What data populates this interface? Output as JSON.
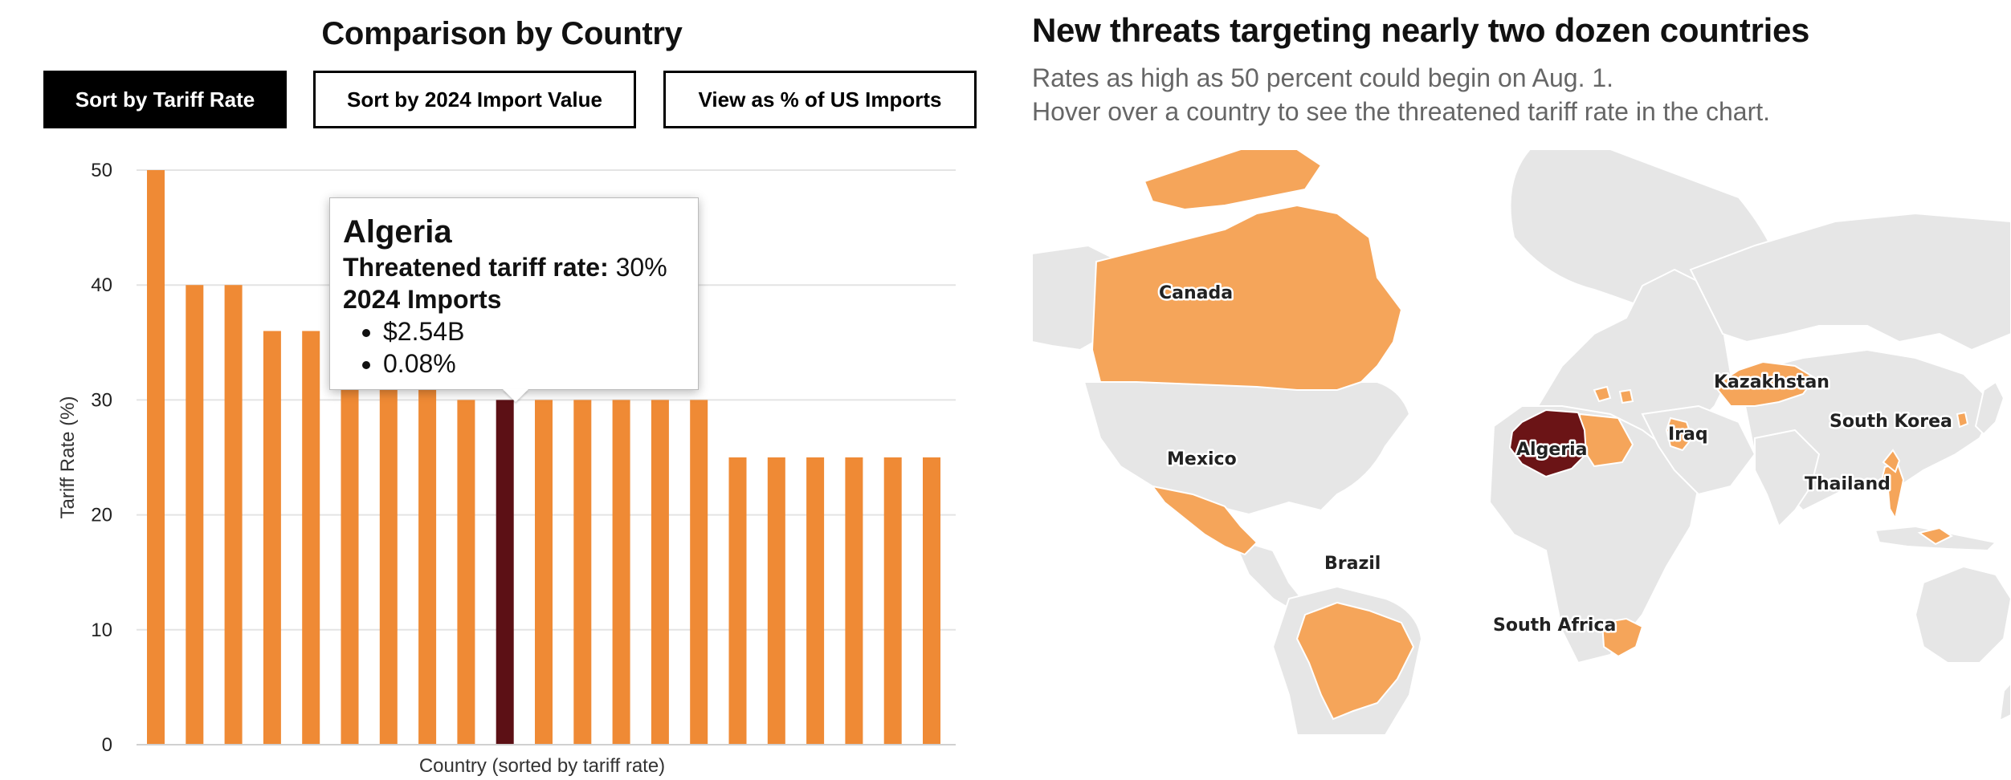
{
  "left_panel": {
    "title": "Comparison by Country",
    "buttons": {
      "sort_tariff": "Sort by Tariff Rate",
      "sort_import": "Sort by 2024 Import Value",
      "view_pct": "View as % of US Imports"
    }
  },
  "tooltip": {
    "country": "Algeria",
    "rate_label": "Threatened tariff rate:",
    "rate_value": "30%",
    "imports_label": "2024 Imports",
    "import_value": "$2.54B",
    "import_pct": "0.08%"
  },
  "chart_data": {
    "type": "bar",
    "xlabel": "Country (sorted by tariff rate)",
    "ylabel": "Tariff Rate (%)",
    "ylim": [
      0,
      50
    ],
    "yticks": [
      0,
      10,
      20,
      30,
      40,
      50
    ],
    "grid": true,
    "values": [
      50,
      40,
      40,
      36,
      36,
      32,
      32,
      32,
      30,
      30,
      30,
      30,
      30,
      30,
      30,
      25,
      25,
      25,
      25,
      25,
      25
    ],
    "highlight_index": 9,
    "highlight_label": "Algeria",
    "colors": {
      "bar": "#ef8a35",
      "highlight": "#5c1015",
      "grid": "#e4e4e4"
    }
  },
  "map_panel": {
    "title": "New threats targeting nearly two dozen countries",
    "subtitle_line1": "Rates as high as 50 percent could begin on Aug. 1.",
    "subtitle_line2": "Hover over a country to see the threatened tariff rate in the chart.",
    "labels": {
      "canada": "Canada",
      "mexico": "Mexico",
      "brazil": "Brazil",
      "algeria": "Algeria",
      "iraq": "Iraq",
      "kazakhstan": "Kazakhstan",
      "south_korea": "South Korea",
      "thailand": "Thailand",
      "south_africa": "South Africa"
    },
    "colors": {
      "land": "#e6e6e6",
      "targeted": "#f5a55a",
      "selected": "#6b1416"
    }
  }
}
